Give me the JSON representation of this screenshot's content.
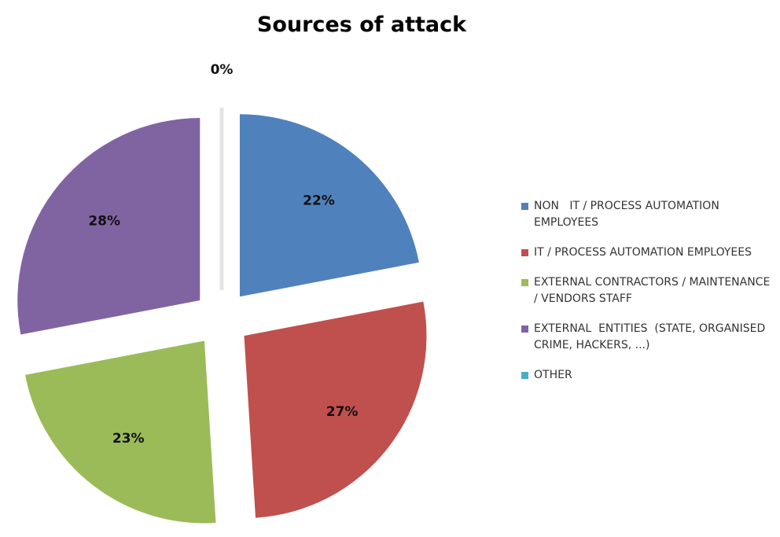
{
  "chart_data": {
    "type": "pie",
    "title": "Sources of attack",
    "categories": [
      "NON   IT / PROCESS AUTOMATION EMPLOYEES",
      "IT / PROCESS AUTOMATION EMPLOYEES",
      "EXTERNAL CONTRACTORS / MAINTENANCE / VENDORS STAFF",
      "EXTERNAL  ENTITIES  (STATE, ORGANISED CRIME, HACKERS, ...)",
      "OTHER"
    ],
    "values": [
      22,
      27,
      23,
      28,
      0
    ],
    "value_labels": [
      "22%",
      "27%",
      "23%",
      "28%",
      "0%"
    ],
    "colors": [
      "#4f81bd",
      "#c0504d",
      "#9bbb59",
      "#8064a2",
      "#4bacc6"
    ],
    "legend": "right"
  }
}
